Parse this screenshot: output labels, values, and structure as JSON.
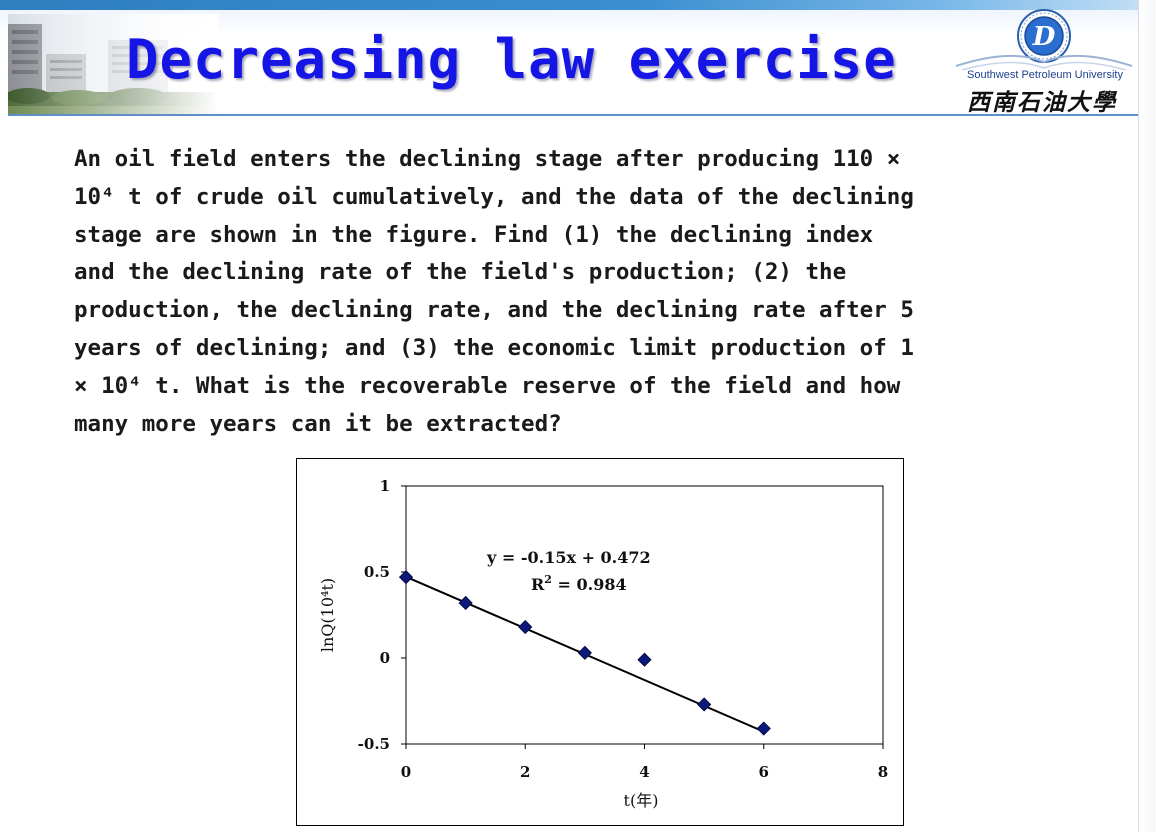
{
  "header": {
    "title": "Decreasing law exercise",
    "university_en": "Southwest Petroleum University",
    "university_cn": "西南石油大學",
    "colors": {
      "title": "#1515e6",
      "top_line": "#2f7fbf",
      "rule": "#5f8fc8"
    }
  },
  "problem": {
    "lines": [
      "An oil field enters the declining stage after producing 110 ×",
      "10⁴ t of crude oil cumulatively, and the data of the declining",
      "stage are shown in the figure. Find (1) the declining index",
      "and the declining rate of the field's production; (2) the",
      "production, the declining rate, and the declining rate after 5",
      "years of declining; and (3) the economic limit production of 1",
      "× 10⁴ t. What is the recoverable reserve of the field and how",
      "many more years can it be extracted?"
    ]
  },
  "chart_data": {
    "type": "scatter",
    "title": "",
    "xlabel": "t(年)",
    "ylabel": "lnQ(10⁴t)",
    "xlim": [
      0,
      8
    ],
    "ylim": [
      -0.5,
      1
    ],
    "x_ticks": [
      0,
      2,
      4,
      6,
      8
    ],
    "x_tick_labels": [
      "0",
      "2",
      "4",
      "6",
      "8"
    ],
    "y_ticks": [
      1,
      0.5,
      0,
      -0.5
    ],
    "y_tick_labels": [
      "1",
      "0.5",
      "0",
      "-0.5"
    ],
    "grid": false,
    "legend": "none",
    "series": [
      {
        "x": [
          0,
          1,
          2,
          3,
          4,
          5,
          6
        ],
        "y": [
          0.47,
          0.32,
          0.18,
          0.03,
          -0.01,
          -0.27,
          -0.41
        ],
        "marker": "diamond",
        "color": "#0b1a7a"
      }
    ],
    "trendline": {
      "slope": -0.15,
      "intercept": 0.472,
      "x_range": [
        0,
        6
      ],
      "color": "#000000"
    },
    "annotations": {
      "equation": "y = -0.15x + 0.472",
      "r2_label": "R",
      "r2_exp": "2",
      "r2_value": " = 0.984"
    }
  }
}
